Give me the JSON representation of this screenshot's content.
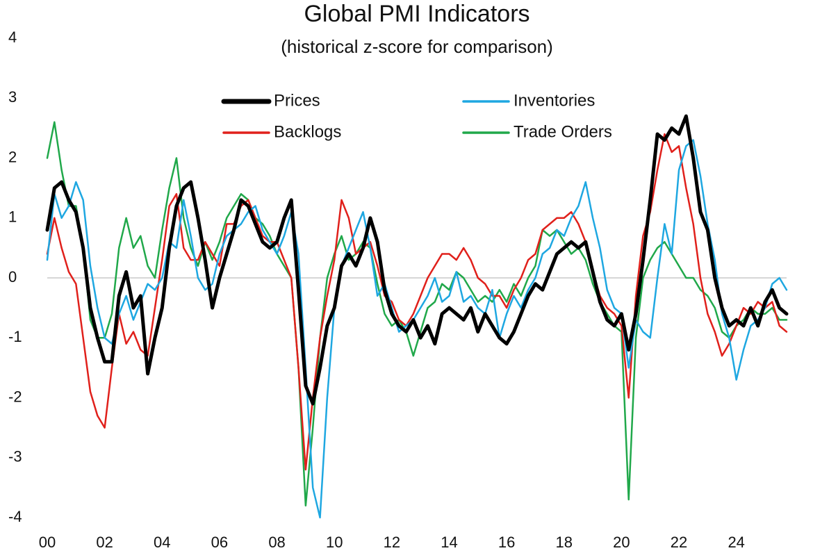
{
  "chart_data": {
    "type": "line",
    "title": "Global PMI Indicators",
    "subtitle": "(historical z-score for comparison)",
    "x": [
      2000,
      2000.25,
      2000.5,
      2000.75,
      2001,
      2001.25,
      2001.5,
      2001.75,
      2002,
      2002.25,
      2002.5,
      2002.75,
      2003,
      2003.25,
      2003.5,
      2003.75,
      2004,
      2004.25,
      2004.5,
      2004.75,
      2005,
      2005.25,
      2005.5,
      2005.75,
      2006,
      2006.25,
      2006.5,
      2006.75,
      2007,
      2007.25,
      2007.5,
      2007.75,
      2008,
      2008.25,
      2008.5,
      2008.75,
      2009,
      2009.25,
      2009.5,
      2009.75,
      2010,
      2010.25,
      2010.5,
      2010.75,
      2011,
      2011.25,
      2011.5,
      2011.75,
      2012,
      2012.25,
      2012.5,
      2012.75,
      2013,
      2013.25,
      2013.5,
      2013.75,
      2014,
      2014.25,
      2014.5,
      2014.75,
      2015,
      2015.25,
      2015.5,
      2015.75,
      2016,
      2016.25,
      2016.5,
      2016.75,
      2017,
      2017.25,
      2017.5,
      2017.75,
      2018,
      2018.25,
      2018.5,
      2018.75,
      2019,
      2019.25,
      2019.5,
      2019.75,
      2020,
      2020.25,
      2020.5,
      2020.75,
      2021,
      2021.25,
      2021.5,
      2021.75,
      2022,
      2022.25,
      2022.5,
      2022.75,
      2023,
      2023.25,
      2023.5,
      2023.75,
      2024,
      2024.25,
      2024.5,
      2024.75,
      2025,
      2025.25,
      2025.5,
      2025.75
    ],
    "series": [
      {
        "name": "Prices",
        "color": "#000000",
        "values": [
          0.8,
          1.5,
          1.6,
          1.3,
          1.1,
          0.5,
          -0.5,
          -1.0,
          -1.4,
          -1.4,
          -0.3,
          0.1,
          -0.5,
          -0.3,
          -1.6,
          -1.0,
          -0.5,
          0.5,
          1.2,
          1.5,
          1.6,
          1.0,
          0.3,
          -0.5,
          0.0,
          0.4,
          0.8,
          1.3,
          1.2,
          0.9,
          0.6,
          0.5,
          0.6,
          1.0,
          1.3,
          -0.2,
          -1.8,
          -2.1,
          -1.5,
          -0.8,
          -0.5,
          0.2,
          0.4,
          0.2,
          0.5,
          1.0,
          0.6,
          -0.2,
          -0.6,
          -0.8,
          -0.9,
          -0.7,
          -1.0,
          -0.8,
          -1.1,
          -0.6,
          -0.5,
          -0.6,
          -0.7,
          -0.5,
          -0.9,
          -0.6,
          -0.8,
          -1.0,
          -1.1,
          -0.9,
          -0.6,
          -0.3,
          -0.1,
          -0.2,
          0.1,
          0.4,
          0.5,
          0.6,
          0.5,
          0.6,
          0.1,
          -0.4,
          -0.7,
          -0.8,
          -0.6,
          -1.2,
          -0.6,
          0.3,
          1.3,
          2.4,
          2.3,
          2.5,
          2.4,
          2.7,
          2.0,
          1.1,
          0.8,
          0.0,
          -0.5,
          -0.8,
          -0.7,
          -0.8,
          -0.5,
          -0.8,
          -0.4,
          -0.2,
          -0.5,
          -0.6
        ]
      },
      {
        "name": "Inventories",
        "color": "#1ea7e1",
        "values": [
          0.3,
          1.4,
          1.0,
          1.2,
          1.6,
          1.3,
          0.2,
          -0.5,
          -1.0,
          -1.1,
          -0.6,
          -0.3,
          -0.7,
          -0.4,
          -0.1,
          -0.2,
          0.0,
          0.6,
          0.5,
          1.3,
          0.7,
          0.0,
          -0.2,
          -0.1,
          0.4,
          0.7,
          0.8,
          0.9,
          1.1,
          1.2,
          0.8,
          0.6,
          0.4,
          0.7,
          1.1,
          0.4,
          -1.5,
          -3.5,
          -4.0,
          -2.0,
          -0.5,
          0.2,
          0.5,
          0.8,
          1.1,
          0.5,
          -0.3,
          -0.1,
          -0.5,
          -0.9,
          -0.8,
          -0.7,
          -0.5,
          -0.3,
          0.0,
          -0.4,
          -0.3,
          0.1,
          -0.4,
          -0.3,
          -0.5,
          -0.6,
          -0.2,
          -1.0,
          -0.6,
          -0.3,
          -0.5,
          -0.2,
          0.0,
          0.4,
          0.5,
          0.8,
          0.7,
          1.0,
          1.2,
          1.6,
          1.0,
          0.5,
          -0.2,
          -0.5,
          -0.6,
          -1.5,
          -0.7,
          -0.9,
          -1.0,
          0.0,
          0.9,
          0.4,
          1.8,
          2.2,
          2.3,
          1.7,
          0.9,
          0.3,
          -0.6,
          -1.0,
          -1.7,
          -1.2,
          -0.8,
          -0.7,
          -0.5,
          -0.1,
          0.0,
          -0.2
        ]
      },
      {
        "name": "Backlogs",
        "color": "#e0201b",
        "values": [
          0.4,
          1.0,
          0.5,
          0.1,
          -0.1,
          -1.0,
          -1.9,
          -2.3,
          -2.5,
          -1.5,
          -0.6,
          -1.1,
          -0.9,
          -1.2,
          -1.3,
          -0.5,
          0.3,
          1.2,
          1.4,
          0.5,
          0.3,
          0.3,
          0.6,
          0.4,
          0.2,
          0.9,
          0.9,
          1.2,
          1.3,
          1.0,
          0.7,
          0.6,
          0.6,
          0.3,
          0.0,
          -1.5,
          -3.2,
          -2.0,
          -1.0,
          -0.3,
          0.3,
          1.3,
          1.0,
          0.4,
          0.5,
          0.6,
          0.2,
          -0.3,
          -0.4,
          -0.7,
          -0.8,
          -0.6,
          -0.3,
          0.0,
          0.2,
          0.4,
          0.4,
          0.3,
          0.5,
          0.3,
          0.0,
          -0.1,
          -0.3,
          -0.3,
          -0.5,
          -0.2,
          0.0,
          0.3,
          0.4,
          0.8,
          0.9,
          1.0,
          1.0,
          1.1,
          0.9,
          0.6,
          0.1,
          -0.3,
          -0.5,
          -0.6,
          -0.8,
          -2.0,
          -0.3,
          0.7,
          1.1,
          1.8,
          2.4,
          2.1,
          2.2,
          1.5,
          0.9,
          0.0,
          -0.6,
          -0.9,
          -1.3,
          -1.1,
          -0.8,
          -0.5,
          -0.6,
          -0.4,
          -0.5,
          -0.4,
          -0.8,
          -0.9
        ]
      },
      {
        "name": "Trade Orders",
        "color": "#20a84a",
        "values": [
          2.0,
          2.6,
          1.8,
          1.2,
          1.2,
          0.5,
          -0.7,
          -1.0,
          -1.0,
          -0.6,
          0.5,
          1.0,
          0.5,
          0.7,
          0.2,
          0.0,
          0.8,
          1.5,
          2.0,
          1.0,
          0.5,
          0.2,
          0.6,
          0.3,
          0.6,
          1.0,
          1.2,
          1.4,
          1.3,
          1.0,
          0.9,
          0.7,
          0.4,
          0.2,
          0.0,
          -1.5,
          -3.8,
          -2.5,
          -1.0,
          0.0,
          0.4,
          0.7,
          0.3,
          0.4,
          0.6,
          0.5,
          -0.1,
          -0.6,
          -0.8,
          -0.7,
          -0.9,
          -1.3,
          -0.9,
          -0.5,
          -0.4,
          -0.1,
          -0.2,
          0.1,
          0.0,
          -0.2,
          -0.4,
          -0.3,
          -0.4,
          -0.2,
          -0.4,
          -0.1,
          -0.3,
          0.0,
          0.2,
          0.8,
          0.7,
          0.8,
          0.6,
          0.4,
          0.5,
          0.3,
          -0.1,
          -0.4,
          -0.6,
          -0.8,
          -0.9,
          -3.7,
          -1.0,
          0.0,
          0.3,
          0.5,
          0.6,
          0.4,
          0.2,
          0.0,
          0.0,
          -0.2,
          -0.3,
          -0.5,
          -0.9,
          -1.0,
          -0.8,
          -0.7,
          -0.5,
          -0.6,
          -0.6,
          -0.5,
          -0.7,
          -0.7
        ]
      }
    ],
    "xlim": [
      2000,
      2025.75
    ],
    "xticks": [
      {
        "value": 2000,
        "label": "00"
      },
      {
        "value": 2002,
        "label": "02"
      },
      {
        "value": 2004,
        "label": "04"
      },
      {
        "value": 2006,
        "label": "06"
      },
      {
        "value": 2008,
        "label": "08"
      },
      {
        "value": 2010,
        "label": "10"
      },
      {
        "value": 2012,
        "label": "12"
      },
      {
        "value": 2014,
        "label": "14"
      },
      {
        "value": 2016,
        "label": "16"
      },
      {
        "value": 2018,
        "label": "18"
      },
      {
        "value": 2020,
        "label": "20"
      },
      {
        "value": 2022,
        "label": "22"
      },
      {
        "value": 2024,
        "label": "24"
      }
    ],
    "ylim": [
      -4,
      4
    ],
    "yticks": [
      -4,
      -3,
      -2,
      -1,
      0,
      1,
      2,
      3,
      4
    ]
  }
}
